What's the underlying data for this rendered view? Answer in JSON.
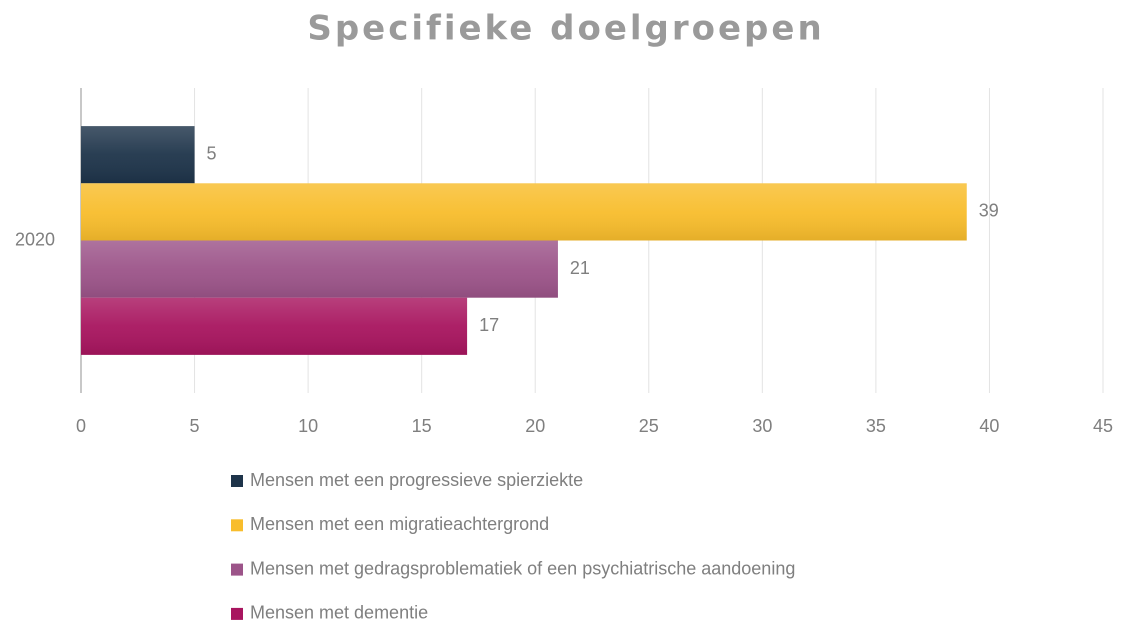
{
  "chart_data": {
    "type": "bar",
    "orientation": "horizontal",
    "title": "Specifieke doelgroepen",
    "categories": [
      "2020"
    ],
    "series": [
      {
        "name": "Mensen met een progressieve spierziekte",
        "color": "#1e344a",
        "values": [
          5
        ]
      },
      {
        "name": "Mensen met een migratieachtergrond",
        "color": "#f8bd2c",
        "values": [
          39
        ]
      },
      {
        "name": "Mensen met gedragsproblematiek of een psychiatrische aandoening",
        "color": "#9c5489",
        "values": [
          21
        ]
      },
      {
        "name": "Mensen met dementie",
        "color": "#a8155f",
        "values": [
          17
        ]
      }
    ],
    "xlim": [
      0,
      45
    ],
    "xticks": [
      0,
      5,
      10,
      15,
      20,
      25,
      30,
      35,
      40,
      45
    ],
    "grid": true,
    "legend": "bottom"
  }
}
